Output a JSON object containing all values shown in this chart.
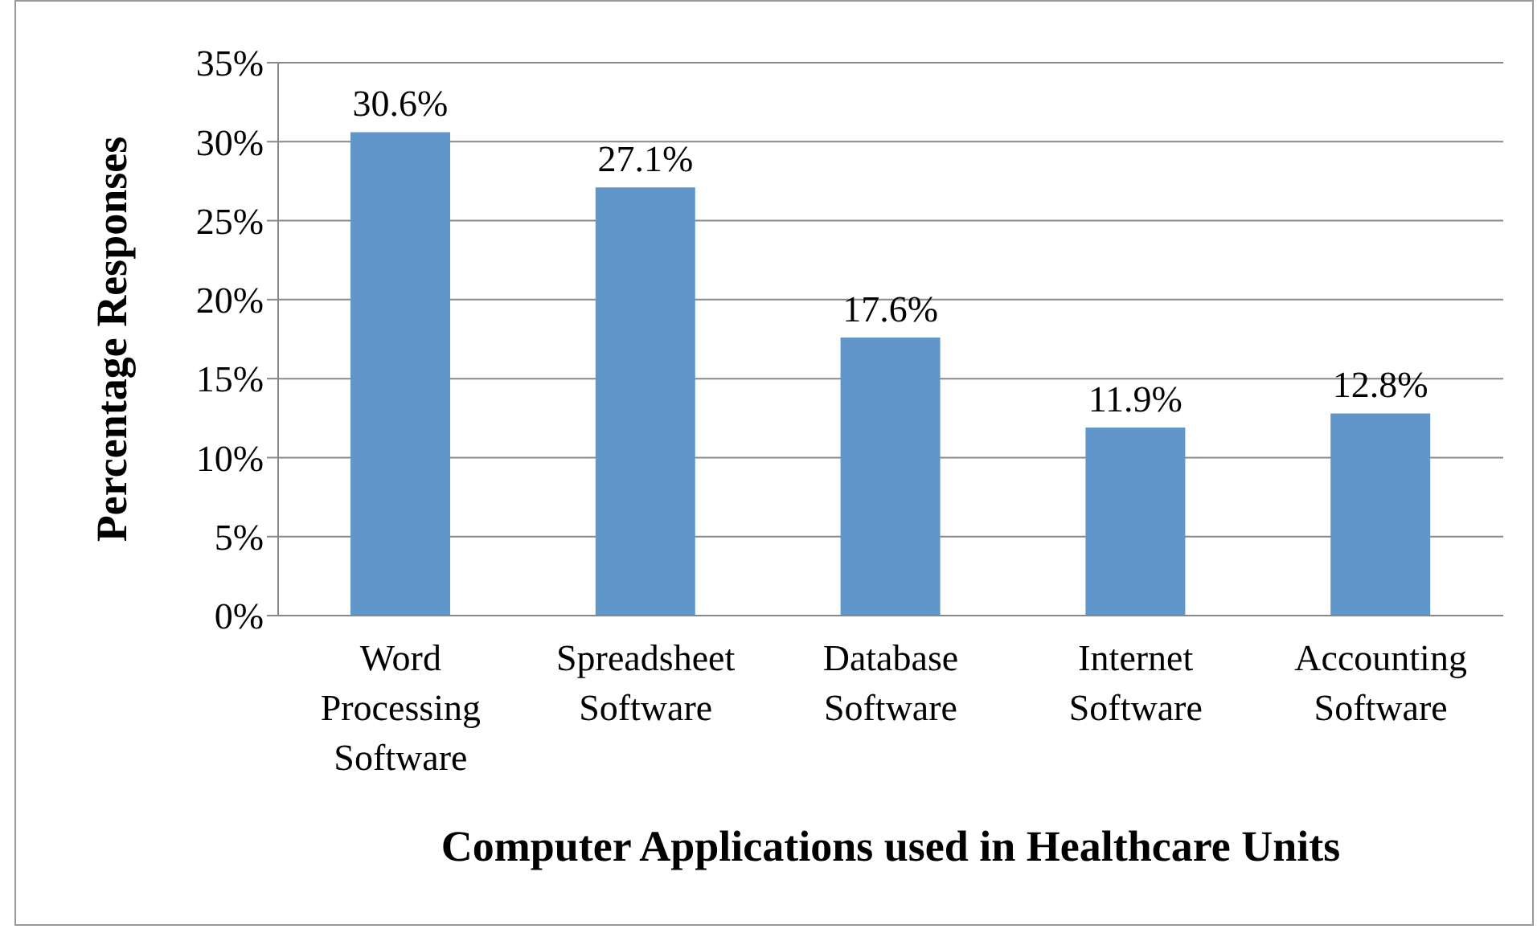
{
  "chart_data": {
    "type": "bar",
    "xlabel": "Computer Applications used in Healthcare Units",
    "ylabel": "Percentage Responses",
    "categories": [
      "Word Processing Software",
      "Spreadsheet Software",
      "Database Software",
      "Internet Software",
      "Accounting Software"
    ],
    "values": [
      30.6,
      27.1,
      17.6,
      11.9,
      12.8
    ],
    "value_labels": [
      "30.6%",
      "27.1%",
      "17.6%",
      "11.9%",
      "12.8%"
    ],
    "color": "#6096c9",
    "ylim": [
      0,
      35
    ],
    "yticks": [
      {
        "value": 0,
        "label": "0%"
      },
      {
        "value": 5,
        "label": "5%"
      },
      {
        "value": 10,
        "label": "10%"
      },
      {
        "value": 15,
        "label": "15%"
      },
      {
        "value": 20,
        "label": "20%"
      },
      {
        "value": 25,
        "label": "25%"
      },
      {
        "value": 30,
        "label": "30%"
      },
      {
        "value": 35,
        "label": "35%"
      }
    ],
    "grid": "y",
    "legend": false
  }
}
